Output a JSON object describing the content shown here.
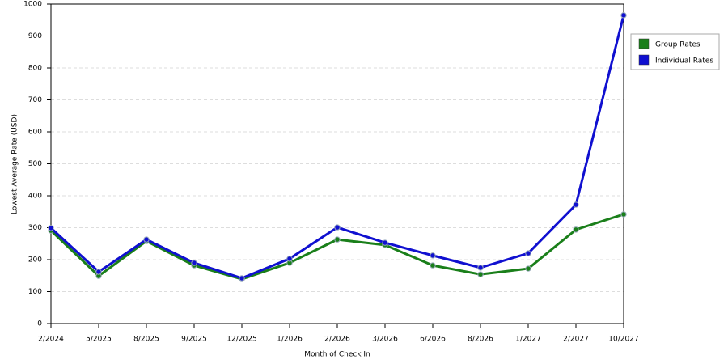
{
  "chart_data": {
    "type": "line",
    "x_label": "Month of Check In",
    "y_label": "Lowest Average Rate (USD)",
    "categories": [
      "2/2024",
      "5/2025",
      "8/2025",
      "9/2025",
      "12/2025",
      "1/2026",
      "2/2026",
      "3/2026",
      "6/2026",
      "8/2026",
      "1/2027",
      "2/2027",
      "10/2027"
    ],
    "series": [
      {
        "name": "Group Rates",
        "color": "#1a7f1a",
        "values": [
          291,
          149,
          258,
          182,
          139,
          190,
          263,
          246,
          182,
          154,
          172,
          294,
          342
        ]
      },
      {
        "name": "Individual Rates",
        "color": "#1010d0",
        "values": [
          299,
          162,
          263,
          190,
          142,
          203,
          301,
          253,
          213,
          175,
          220,
          372,
          965
        ]
      }
    ],
    "ylim": [
      0,
      1000
    ],
    "yticks": [
      0,
      100,
      200,
      300,
      400,
      500,
      600,
      700,
      800,
      900,
      1000
    ],
    "grid": true,
    "legend": "outside-right"
  }
}
